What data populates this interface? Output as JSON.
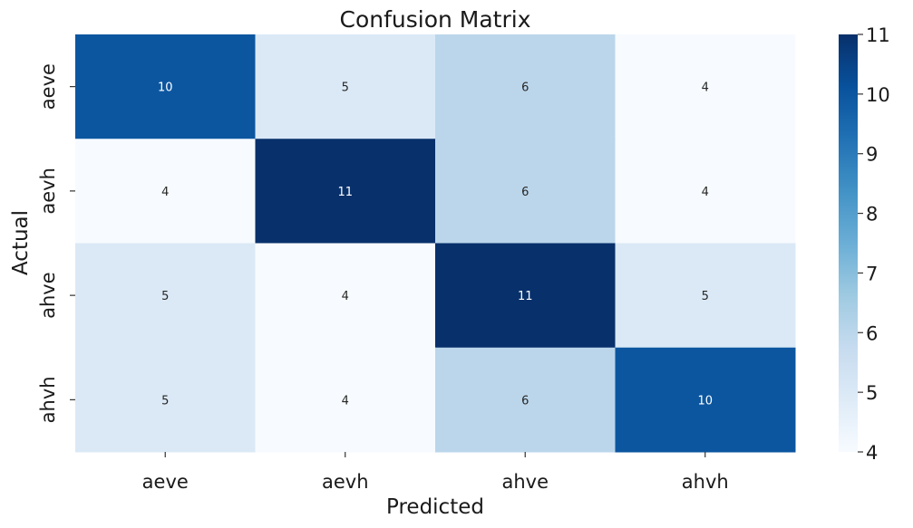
{
  "chart_data": {
    "type": "heatmap",
    "title": "Confusion Matrix",
    "xlabel": "Predicted",
    "ylabel": "Actual",
    "x_categories": [
      "aeve",
      "aevh",
      "ahve",
      "ahvh"
    ],
    "y_categories": [
      "aeve",
      "aevh",
      "ahve",
      "ahvh"
    ],
    "values": [
      [
        10,
        5,
        6,
        4
      ],
      [
        4,
        11,
        6,
        4
      ],
      [
        5,
        4,
        11,
        5
      ],
      [
        5,
        4,
        6,
        10
      ]
    ],
    "colorbar": {
      "range": [
        4,
        11
      ],
      "ticks": [
        "4",
        "5",
        "6",
        "7",
        "8",
        "9",
        "10",
        "11"
      ]
    },
    "colormap": [
      "#f7fbff",
      "#deebf7",
      "#c6dbef",
      "#9ecae1",
      "#6baed6",
      "#4292c6",
      "#2171b5",
      "#08519c",
      "#08306b"
    ],
    "annotation_colors": {
      "light": "#ffffff",
      "dark": "#262626"
    }
  }
}
